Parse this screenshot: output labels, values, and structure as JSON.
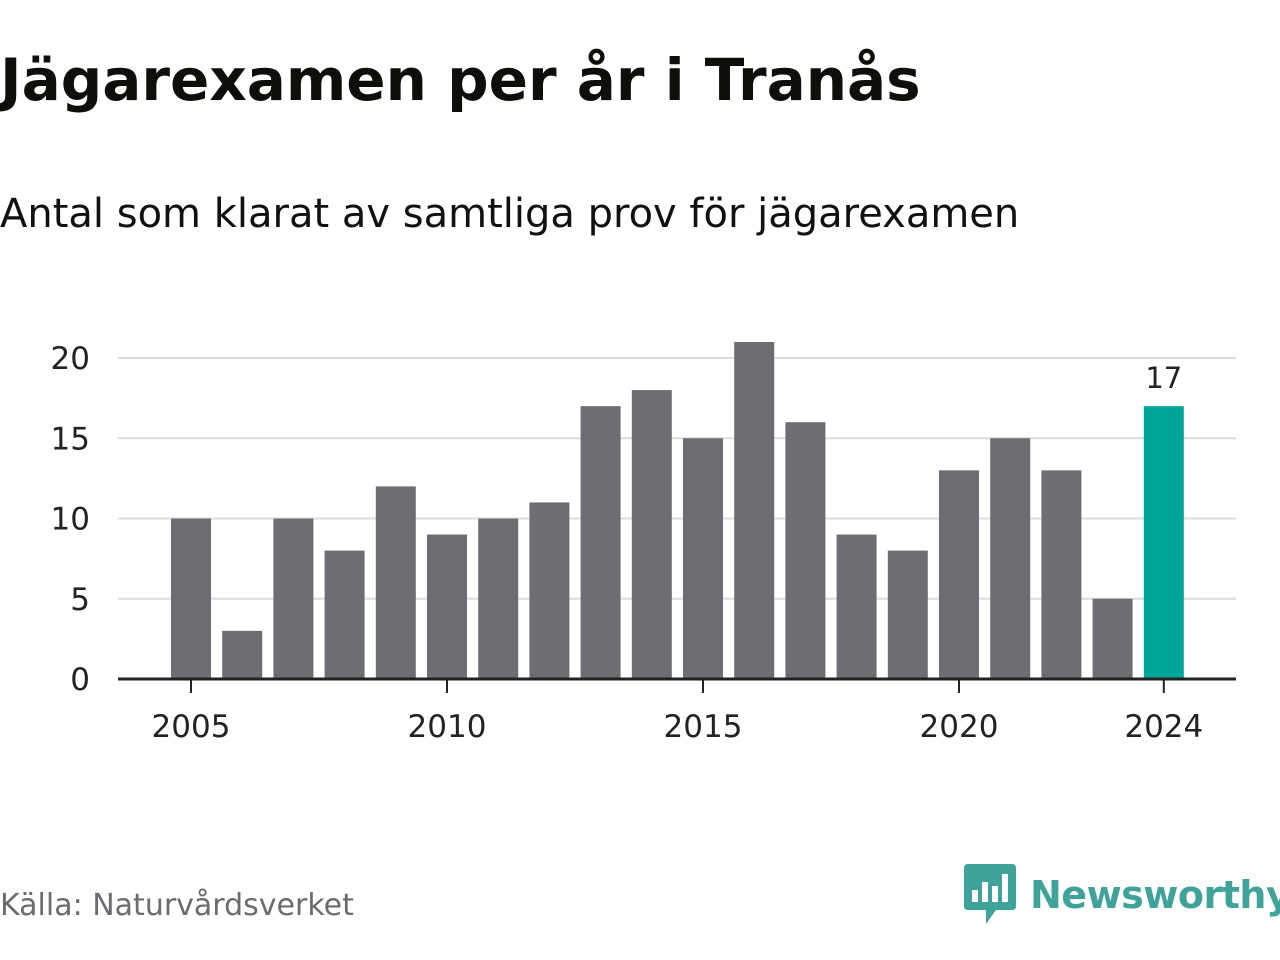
{
  "title": "Jägarexamen per år i Tranås",
  "subtitle": "Antal som klarat av samtliga prov för jägarexamen",
  "source": "Källa: Naturvårdsverket",
  "brand": {
    "name": "Newsworthy",
    "icon": "newsworthy-logo-icon",
    "color": "#3fa39a"
  },
  "colors": {
    "bar": "#6e6d73",
    "highlight": "#00a699",
    "grid": "#dcdcdc",
    "axis": "#222222",
    "text": "#222222"
  },
  "chart_data": {
    "type": "bar",
    "categories": [
      2005,
      2006,
      2007,
      2008,
      2009,
      2010,
      2011,
      2012,
      2013,
      2014,
      2015,
      2016,
      2017,
      2018,
      2019,
      2020,
      2021,
      2022,
      2023,
      2024
    ],
    "values": [
      10,
      3,
      10,
      8,
      12,
      9,
      10,
      11,
      17,
      18,
      15,
      21,
      16,
      9,
      8,
      13,
      15,
      13,
      5,
      17
    ],
    "title": "Jägarexamen per år i Tranås",
    "subtitle": "Antal som klarat av samtliga prov för jägarexamen",
    "xlabel": "",
    "ylabel": "",
    "ylim": [
      0,
      20
    ],
    "yticks": [
      0,
      5,
      10,
      15,
      20
    ],
    "xticks": [
      2005,
      2010,
      2015,
      2020,
      2024
    ],
    "highlight_index": 19,
    "data_labels": [
      {
        "index": 19,
        "text": "17"
      }
    ],
    "grid": true,
    "legend": "none"
  }
}
